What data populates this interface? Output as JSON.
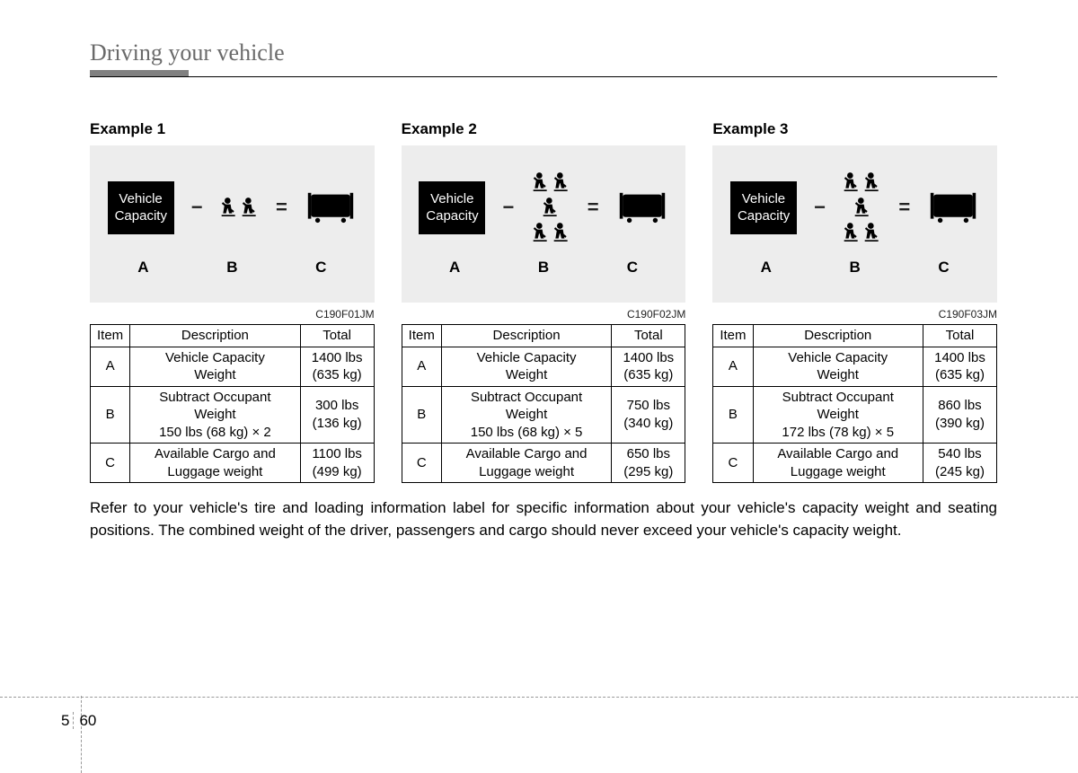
{
  "section_title": "Driving your vehicle",
  "examples": [
    {
      "title": "Example 1",
      "vc_label_1": "Vehicle",
      "vc_label_2": "Capacity",
      "passenger_rows": [
        2
      ],
      "labels": [
        "A",
        "B",
        "C"
      ],
      "code": "C190F01JM",
      "table": {
        "headers": [
          "Item",
          "Description",
          "Total"
        ],
        "rows": [
          {
            "item": "A",
            "desc": "Vehicle Capacity\nWeight",
            "total": "1400 lbs\n(635 kg)"
          },
          {
            "item": "B",
            "desc": "Subtract Occupant\nWeight\n150 lbs (68 kg) × 2",
            "total": "300 lbs\n(136 kg)"
          },
          {
            "item": "C",
            "desc": "Available Cargo and\nLuggage weight",
            "total": "1100 lbs\n(499 kg)"
          }
        ]
      }
    },
    {
      "title": "Example 2",
      "vc_label_1": "Vehicle",
      "vc_label_2": "Capacity",
      "passenger_rows": [
        2,
        1,
        2
      ],
      "labels": [
        "A",
        "B",
        "C"
      ],
      "code": "C190F02JM",
      "table": {
        "headers": [
          "Item",
          "Description",
          "Total"
        ],
        "rows": [
          {
            "item": "A",
            "desc": "Vehicle Capacity\nWeight",
            "total": "1400 lbs\n(635 kg)"
          },
          {
            "item": "B",
            "desc": "Subtract Occupant\nWeight\n150 lbs (68 kg) × 5",
            "total": "750 lbs\n(340 kg)"
          },
          {
            "item": "C",
            "desc": "Available Cargo and\nLuggage weight",
            "total": "650 lbs\n(295 kg)"
          }
        ]
      }
    },
    {
      "title": "Example 3",
      "vc_label_1": "Vehicle",
      "vc_label_2": "Capacity",
      "passenger_rows": [
        2,
        1,
        2
      ],
      "labels": [
        "A",
        "B",
        "C"
      ],
      "code": "C190F03JM",
      "table": {
        "headers": [
          "Item",
          "Description",
          "Total"
        ],
        "rows": [
          {
            "item": "A",
            "desc": "Vehicle Capacity\nWeight",
            "total": "1400 lbs\n(635 kg)"
          },
          {
            "item": "B",
            "desc": "Subtract Occupant\nWeight\n172 lbs (78 kg) × 5",
            "total": "860 lbs\n(390 kg)"
          },
          {
            "item": "C",
            "desc": "Available Cargo and\nLuggage weight",
            "total": "540 lbs\n(245 kg)"
          }
        ]
      }
    }
  ],
  "footer_text": "Refer to your vehicle's tire and loading information label for specific information about your vehicle's capacity weight and seating positions. The combined weight of the driver, passengers and cargo should never exceed your vehicle's capacity weight.",
  "page_number_left": "5",
  "page_number_right": "60",
  "colors": {
    "diagram_bg": "#ededed",
    "vc_box_bg": "#000000",
    "vc_box_fg": "#ffffff",
    "title_color": "#6a6a6a"
  }
}
